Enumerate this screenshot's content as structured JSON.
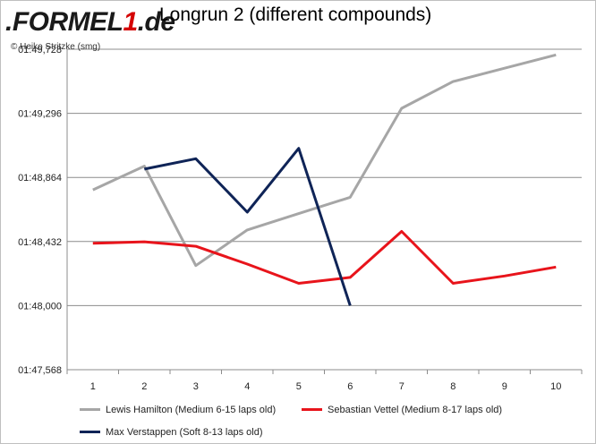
{
  "header": {
    "logo_text_prefix": ".FORMEL",
    "logo_text_digit": "1",
    "logo_text_suffix": ".de",
    "title": "Longrun 2 (different compounds)",
    "credit": "© Heiko Stritzke (smg)"
  },
  "chart_data": {
    "type": "line",
    "title": "Longrun 2 (different compounds)",
    "xlabel": "",
    "ylabel": "",
    "categories": [
      "1",
      "2",
      "3",
      "4",
      "5",
      "6",
      "7",
      "8",
      "9",
      "10"
    ],
    "y_ticks": [
      "01:47,568",
      "01:48,000",
      "01:48,432",
      "01:48,864",
      "01:49,296",
      "01:49,728"
    ],
    "ylim": [
      107.568,
      109.728
    ],
    "grid": "horizontal",
    "legend_position": "bottom",
    "series": [
      {
        "name": "Lewis Hamilton (Medium 6-15 laps old)",
        "color": "#a6a6a6",
        "values": [
          108.78,
          108.94,
          108.27,
          108.51,
          108.62,
          108.73,
          109.33,
          109.51,
          109.6,
          109.69
        ]
      },
      {
        "name": "Sebastian Vettel (Medium 8-17 laps old)",
        "color": "#e8141b",
        "values": [
          108.42,
          108.43,
          108.4,
          108.28,
          108.15,
          108.19,
          108.5,
          108.15,
          108.2,
          108.26
        ]
      },
      {
        "name": "Max Verstappen (Soft 8-13 laps old)",
        "color": "#0f2457",
        "values": [
          null,
          108.92,
          108.99,
          108.63,
          109.06,
          108.0,
          null,
          null,
          null,
          null
        ]
      }
    ]
  }
}
